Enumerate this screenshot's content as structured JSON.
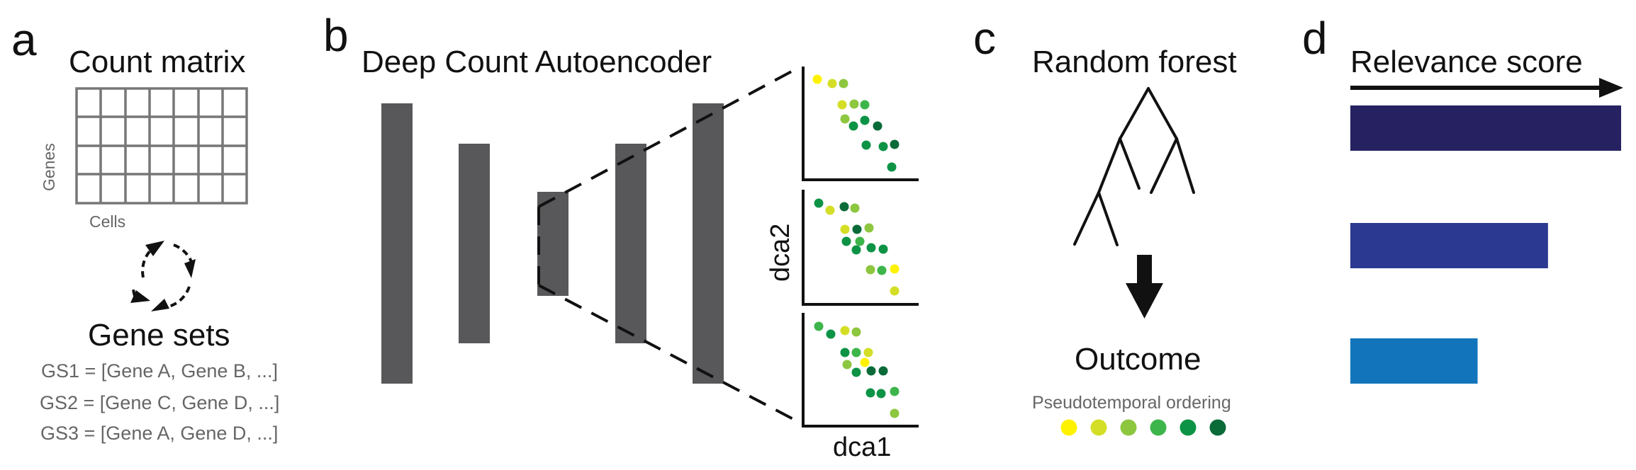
{
  "panels": {
    "a": {
      "letter": "a",
      "title": "Count matrix",
      "matrix_rows_label": "Genes",
      "matrix_cols_label": "Cells",
      "gene_sets_title": "Gene sets",
      "gene_sets": [
        "GS1 = [Gene A, Gene B, ...]",
        "GS2 = [Gene C, Gene D, ...]",
        "GS3 = [Gene A, Gene D, ...]"
      ],
      "icon": "cycle-arrows-icon"
    },
    "b": {
      "letter": "b",
      "title": "Deep Count Autoencoder",
      "xaxis": "dca1",
      "yaxis": "dca2"
    },
    "c": {
      "letter": "c",
      "title": "Random forest",
      "outcome_title": "Outcome",
      "ordering_label": "Pseudotemporal ordering",
      "ordering_colors": [
        "#FFF200",
        "#D4DE26",
        "#8DC63F",
        "#3DB54A",
        "#0D9345",
        "#0A6B38"
      ],
      "icon": "tree-icon"
    },
    "d": {
      "letter": "d",
      "title": "Relevance score",
      "bars": [
        {
          "relative_score": 1.0,
          "color": "#262262"
        },
        {
          "relative_score": 0.73,
          "color": "#2B3990"
        },
        {
          "relative_score": 0.47,
          "color": "#1275BC"
        }
      ]
    }
  }
}
